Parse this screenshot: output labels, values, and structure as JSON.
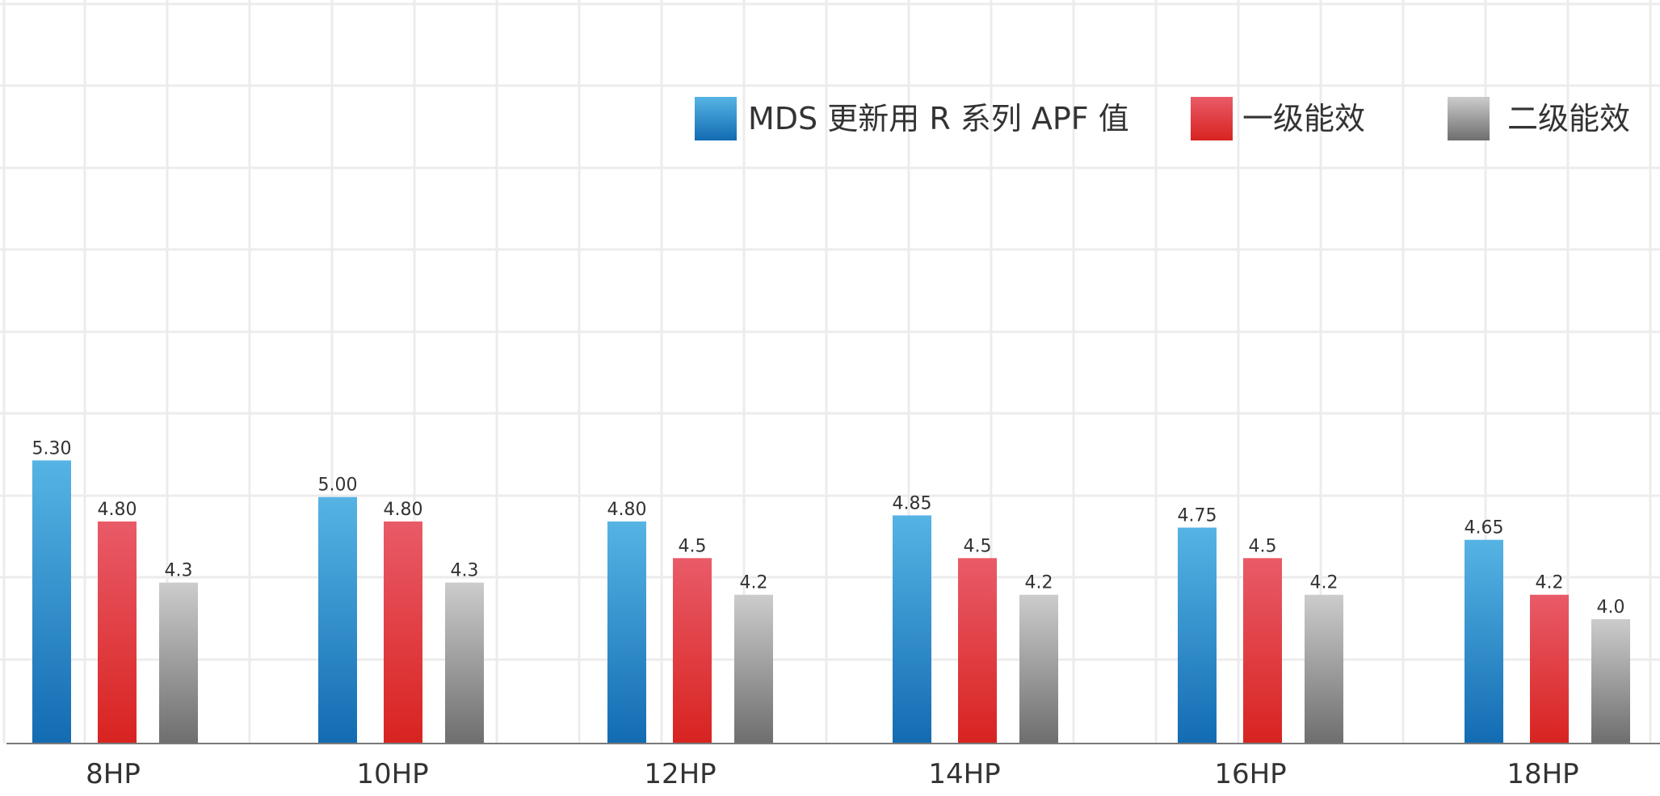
{
  "chart_data": {
    "type": "bar",
    "categories": [
      "8HP",
      "10HP",
      "12HP",
      "14HP",
      "16HP",
      "18HP"
    ],
    "series": [
      {
        "name": "MDS 更新用 R 系列 APF 值",
        "values": [
          5.3,
          5.0,
          4.8,
          4.85,
          4.75,
          4.65
        ],
        "labels": [
          "5.30",
          "5.00",
          "4.80",
          "4.85",
          "4.75",
          "4.65"
        ],
        "colors": [
          "#56b4e4",
          "#136bb2"
        ]
      },
      {
        "name": "一级能效",
        "values": [
          4.8,
          4.8,
          4.5,
          4.5,
          4.5,
          4.2
        ],
        "labels": [
          "4.80",
          "4.80",
          "4.5",
          "4.5",
          "4.5",
          "4.2"
        ],
        "colors": [
          "#e95b68",
          "#d82320"
        ]
      },
      {
        "name": "二级能效",
        "values": [
          4.3,
          4.3,
          4.2,
          4.2,
          4.2,
          4.0
        ],
        "labels": [
          "4.3",
          "4.3",
          "4.2",
          "4.2",
          "4.2",
          "4.0"
        ],
        "colors": [
          "#cccccc",
          "#6e6e6e"
        ]
      }
    ],
    "title": "",
    "xlabel": "",
    "ylabel": "",
    "grid": true,
    "legend": "top-right"
  }
}
